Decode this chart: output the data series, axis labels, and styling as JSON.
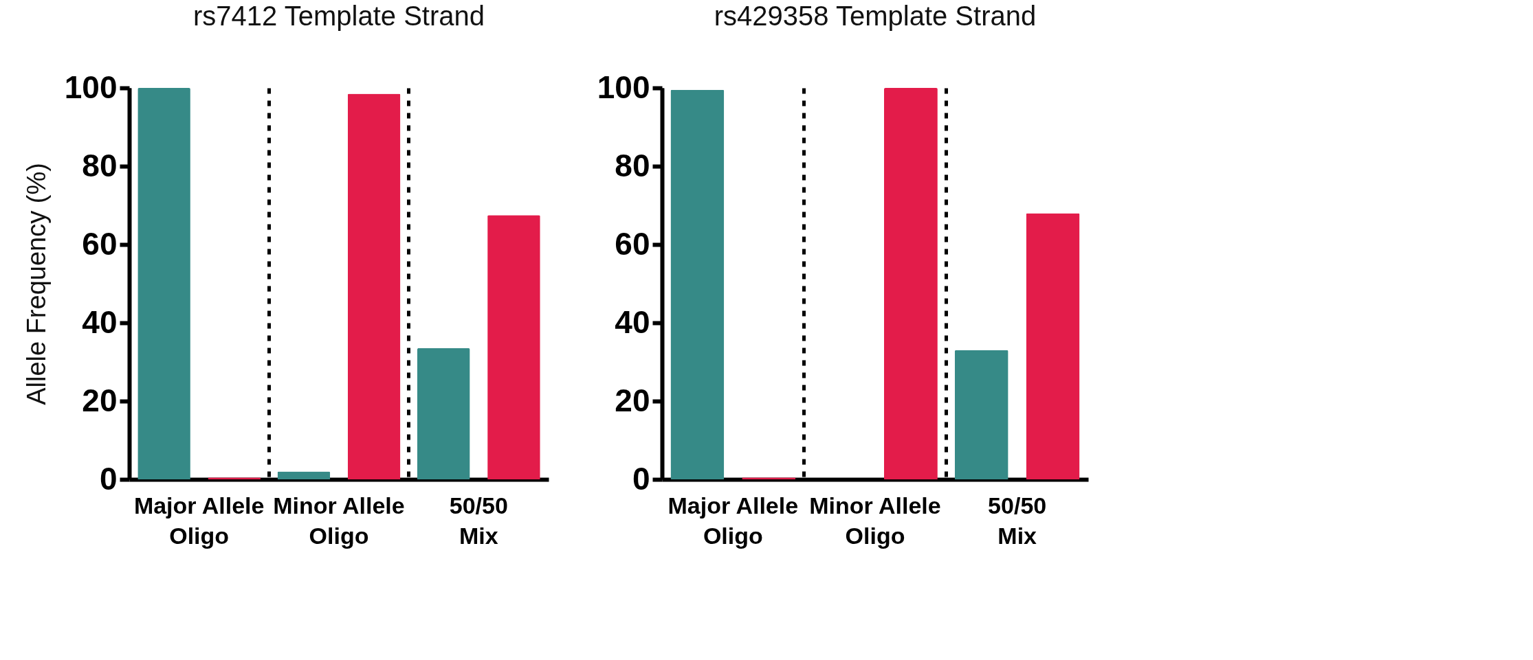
{
  "chart_data": [
    {
      "type": "bar",
      "title": "rs7412 Template Strand",
      "ylabel": "Allele Frequency (%)",
      "categories": [
        "Major Allele Oligo",
        "Minor Allele Oligo",
        "50/50 Mix"
      ],
      "series": [
        {
          "color": "#368a87",
          "values": [
            100,
            2,
            33.5
          ]
        },
        {
          "color": "#e31c4a",
          "values": [
            0.5,
            98.5,
            67.5
          ]
        }
      ],
      "ylim": [
        0,
        100
      ],
      "yticks": [
        0,
        20,
        40,
        60,
        80,
        100
      ],
      "grid": "x",
      "legend": false
    },
    {
      "type": "bar",
      "title": "rs429358 Template Strand",
      "categories": [
        "Major Allele Oligo",
        "Minor Allele Oligo",
        "50/50 Mix"
      ],
      "series": [
        {
          "color": "#368a87",
          "values": [
            99.5,
            0,
            33
          ]
        },
        {
          "color": "#e31c4a",
          "values": [
            0.5,
            100,
            68
          ]
        }
      ],
      "ylim": [
        0,
        100
      ],
      "yticks": [
        0,
        20,
        40,
        60,
        80,
        100
      ],
      "grid": "x",
      "legend": false
    }
  ]
}
